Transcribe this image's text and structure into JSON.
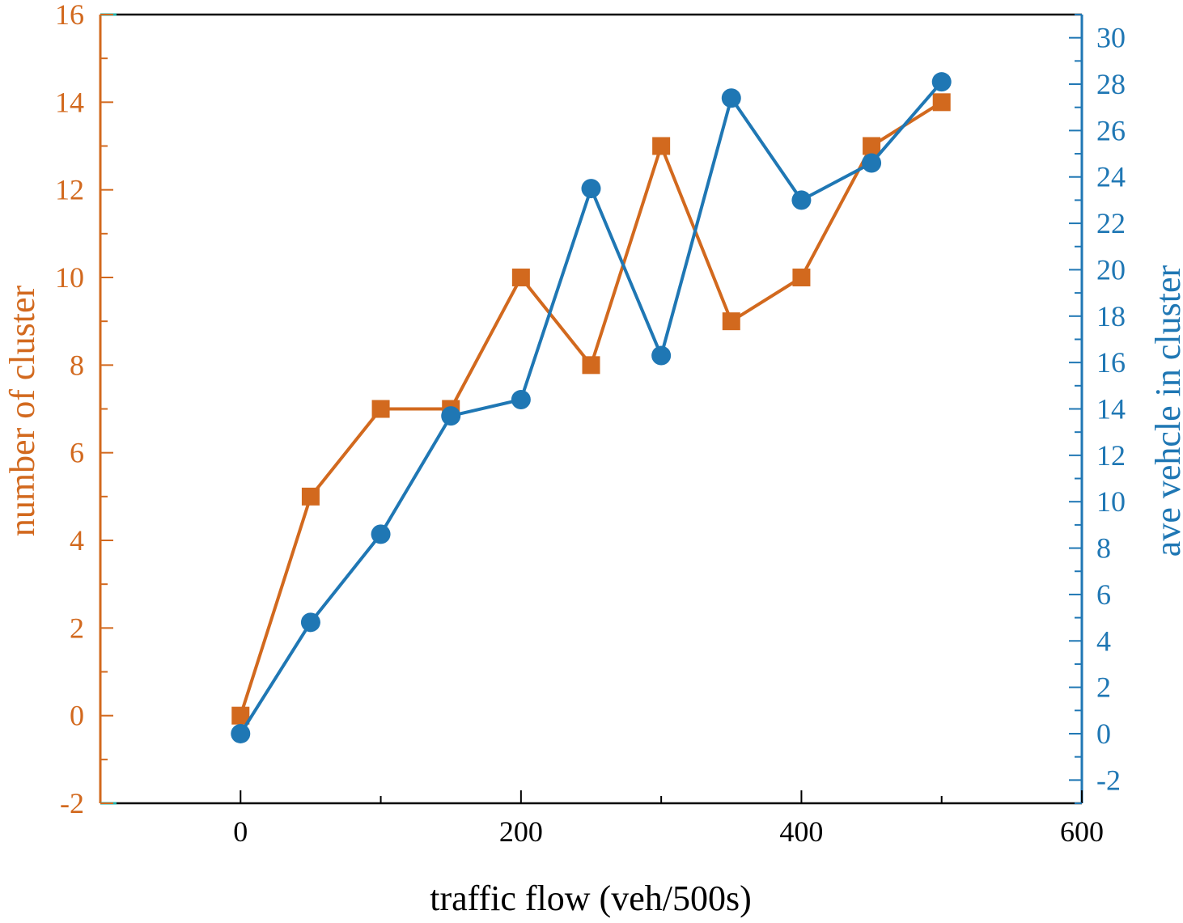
{
  "chart_data": {
    "type": "line",
    "title": "",
    "xlabel": "traffic flow (veh/500s)",
    "ylabel_left": "number of cluster",
    "ylabel_right": "ave vehcle in cluster",
    "xlim": [
      -100,
      600
    ],
    "ylim_left": [
      -2,
      16
    ],
    "ylim_right": [
      -3,
      31
    ],
    "x_ticks": [
      0,
      200,
      400,
      600
    ],
    "y_ticks_left": [
      -2,
      0,
      2,
      4,
      6,
      8,
      10,
      12,
      14,
      16
    ],
    "y_ticks_right": [
      -2,
      0,
      2,
      4,
      6,
      8,
      10,
      12,
      14,
      16,
      18,
      20,
      22,
      24,
      26,
      28,
      30
    ],
    "grid": false,
    "x": [
      0,
      50,
      100,
      150,
      200,
      250,
      300,
      350,
      400,
      450,
      500
    ],
    "series": [
      {
        "axis": "left",
        "marker": "square",
        "color": "#D2691E",
        "values": [
          0,
          5,
          7,
          7,
          10,
          8,
          13,
          9,
          10,
          13,
          14
        ]
      },
      {
        "axis": "right",
        "marker": "circle",
        "color": "#1F77B4",
        "values": [
          0,
          4.8,
          8.6,
          13.7,
          14.4,
          23.5,
          16.3,
          27.4,
          23.0,
          24.6,
          28.1
        ]
      }
    ],
    "colors": {
      "left_axis": "#D2691E",
      "right_axis": "#1F77B4",
      "frame": "#000000",
      "top_accent": "#20B2AA"
    }
  }
}
